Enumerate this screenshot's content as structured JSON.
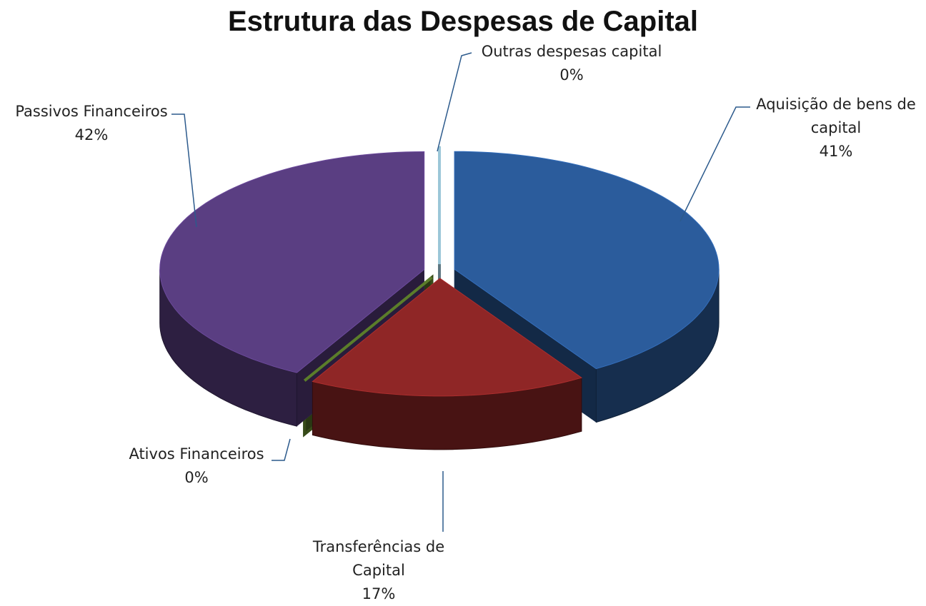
{
  "chart_data": {
    "type": "pie3d",
    "title": "Estrutura das Despesas de Capital",
    "categories": [
      "Aquisição de bens de capital",
      "Transferências de Capital",
      "Ativos Financeiros",
      "Passivos Financeiros",
      "Outras despesas capital"
    ],
    "values": [
      41,
      17,
      0,
      42,
      0
    ],
    "value_labels": [
      "41%",
      "17%",
      "0%",
      "42%",
      "0%"
    ],
    "colors": [
      "#2b5c9c",
      "#8f2626",
      "#5b7d2a",
      "#5a3e82",
      "#9cc7d8"
    ]
  }
}
